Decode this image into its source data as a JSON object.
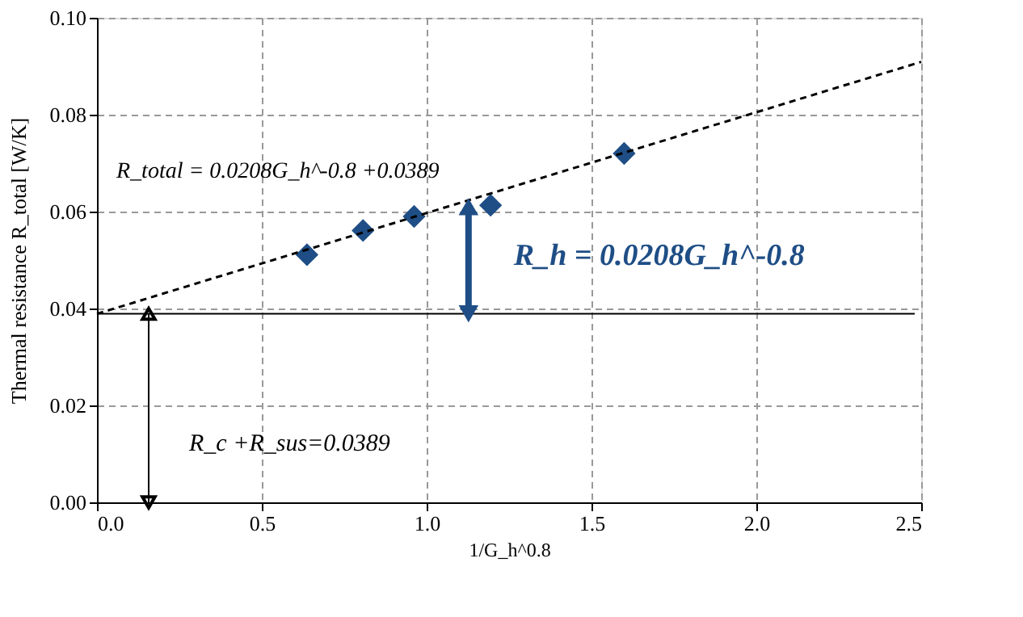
{
  "chart_data": {
    "type": "scatter",
    "xlabel": "1/G_h^0.8",
    "ylabel": "Thermal resistance  R_total  [W/K]",
    "xlim": [
      0,
      2.5
    ],
    "xticks": [
      {
        "value": 0,
        "label": "0.0"
      },
      {
        "value": 0.5,
        "label": "0.5"
      },
      {
        "value": 1,
        "label": "1.0"
      },
      {
        "value": 1.5,
        "label": "1.5"
      },
      {
        "value": 2,
        "label": "2.0"
      },
      {
        "value": 2.5,
        "label": "2.5"
      }
    ],
    "ylim": [
      0,
      0.1
    ],
    "yticks": [
      {
        "value": 0,
        "label": "0.00"
      },
      {
        "value": 0.02,
        "label": "0.02"
      },
      {
        "value": 0.04,
        "label": "0.04"
      },
      {
        "value": 0.06,
        "label": "0.06"
      },
      {
        "value": 0.08,
        "label": "0.08"
      },
      {
        "value": 0.1,
        "label": "0.10"
      }
    ],
    "grid": true,
    "series": [
      {
        "color": "#1f4e86",
        "marker": "diamond",
        "x": [
          0.637,
          0.807,
          0.962,
          1.194,
          1.599
        ],
        "values": [
          0.0511,
          0.0561,
          0.059,
          0.0613,
          0.072
        ]
      },
      {
        "type": "line",
        "color": "#000000",
        "line_style": "dashed",
        "x": [
          0,
          2.5
        ],
        "values": [
          0.0389,
          0.0909
        ]
      }
    ],
    "ref_lines": [
      {
        "axis": "y",
        "value": 0.0389,
        "color": "#000000",
        "line_style": "solid"
      }
    ],
    "annotations": [
      "R_total = 0.0208G_h^-0.8 +0.0389",
      {
        "text": "R_h = 0.0208G_h^-0.8",
        "x": 1.127,
        "y": 0.061
      },
      "R_c +R_sus=0.0389"
    ]
  }
}
